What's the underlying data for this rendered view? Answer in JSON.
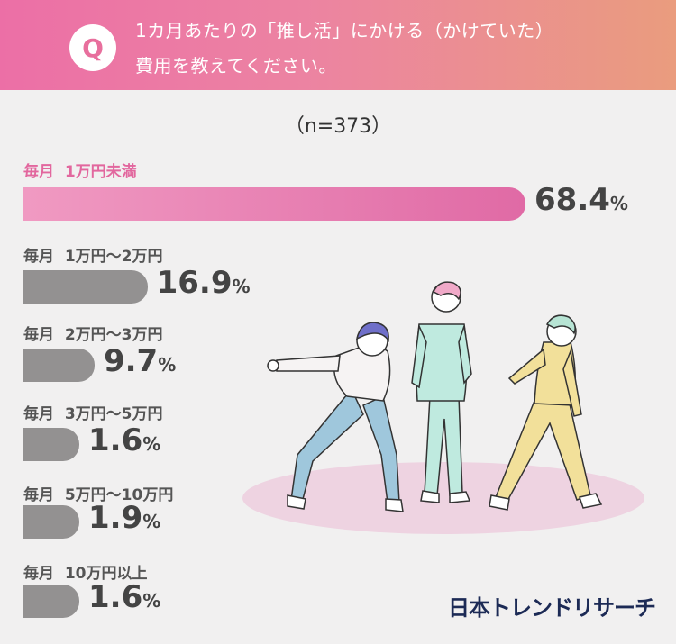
{
  "question": {
    "badge": "Q",
    "line1": "1カ月あたりの「推し活」にかける（かけていた）",
    "line2": "費用を教えてください。"
  },
  "sample_size": "（n=373）",
  "percent_unit": "%",
  "brand": "日本トレンドリサーチ",
  "colors": {
    "highlight_bar": "#e06aa5",
    "highlight_text": "#e2679e",
    "bar": "#939191",
    "header_start": "#ec6fa6",
    "header_end": "#ea9c7e",
    "brand": "#1c2a55"
  },
  "chart_data": {
    "type": "bar",
    "orientation": "horizontal",
    "categories": [
      "毎月  1万円未満",
      "毎月  1万円〜2万円",
      "毎月  2万円〜3万円",
      "毎月  3万円〜5万円",
      "毎月  5万円〜10万円",
      "毎月  10万円以上"
    ],
    "values": [
      68.4,
      16.9,
      9.7,
      1.6,
      1.9,
      1.6
    ],
    "value_labels": [
      "68.4",
      "16.9",
      "9.7",
      "1.6",
      "1.9",
      "1.6"
    ],
    "highlight_index": 0,
    "xlim": [
      0,
      100
    ],
    "grid": false
  }
}
